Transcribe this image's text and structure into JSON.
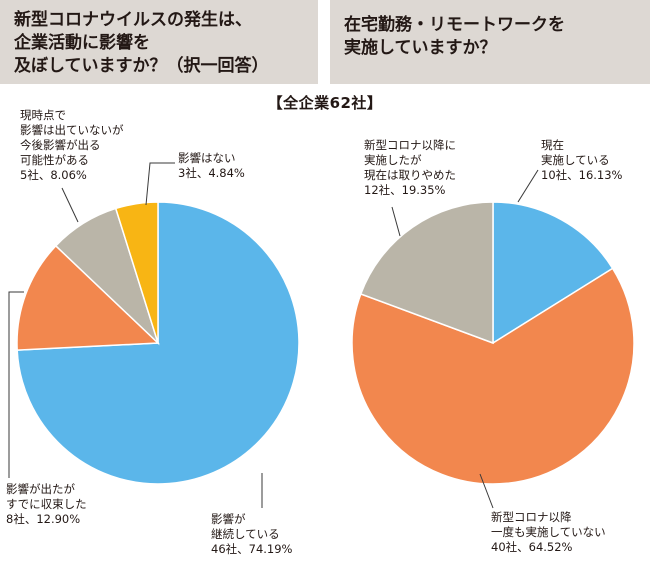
{
  "question_left": "新型コロナウイルスの発生は、\n企業活動に影響を\n及ぼしていますか？（択一回答）",
  "question_right": "在宅勤務・リモートワークを\n実施していますか？",
  "center_title": "【全企業62社】",
  "colors": {
    "blue": "#5bb6ea",
    "orange": "#f2874e",
    "gray": "#bab5a8",
    "yellow": "#f8b514",
    "panel": "#ddd8d3"
  },
  "chart_data": [
    {
      "type": "pie",
      "title": "新型コロナウイルスの発生は、企業活動に影響を及ぼしていますか？（択一回答）",
      "total_label": "【全企業62社】",
      "slices": [
        {
          "label": "影響が\n継続している",
          "value_text": "46社、74.19%",
          "count": 46,
          "percent": 74.19,
          "color": "#5bb6ea"
        },
        {
          "label": "影響が出たが\nすでに収束した",
          "value_text": "8社、12.90%",
          "count": 8,
          "percent": 12.9,
          "color": "#f2874e"
        },
        {
          "label": "現時点で\n影響は出ていないが\n今後影響が出る\n可能性がある",
          "value_text": "5社、8.06%",
          "count": 5,
          "percent": 8.06,
          "color": "#bab5a8"
        },
        {
          "label": "影響はない",
          "value_text": "3社、4.84%",
          "count": 3,
          "percent": 4.84,
          "color": "#f8b514"
        }
      ]
    },
    {
      "type": "pie",
      "title": "在宅勤務・リモートワークを実施していますか？",
      "slices": [
        {
          "label": "現在\n実施している",
          "value_text": "10社、16.13%",
          "count": 10,
          "percent": 16.13,
          "color": "#5bb6ea"
        },
        {
          "label": "新型コロナ以降\n一度も実施していない",
          "value_text": "40社、64.52%",
          "count": 40,
          "percent": 64.52,
          "color": "#f2874e"
        },
        {
          "label": "新型コロナ以降に\n実施したが\n現在は取りやめた",
          "value_text": "12社、19.35%",
          "count": 12,
          "percent": 19.35,
          "color": "#bab5a8"
        }
      ]
    }
  ]
}
